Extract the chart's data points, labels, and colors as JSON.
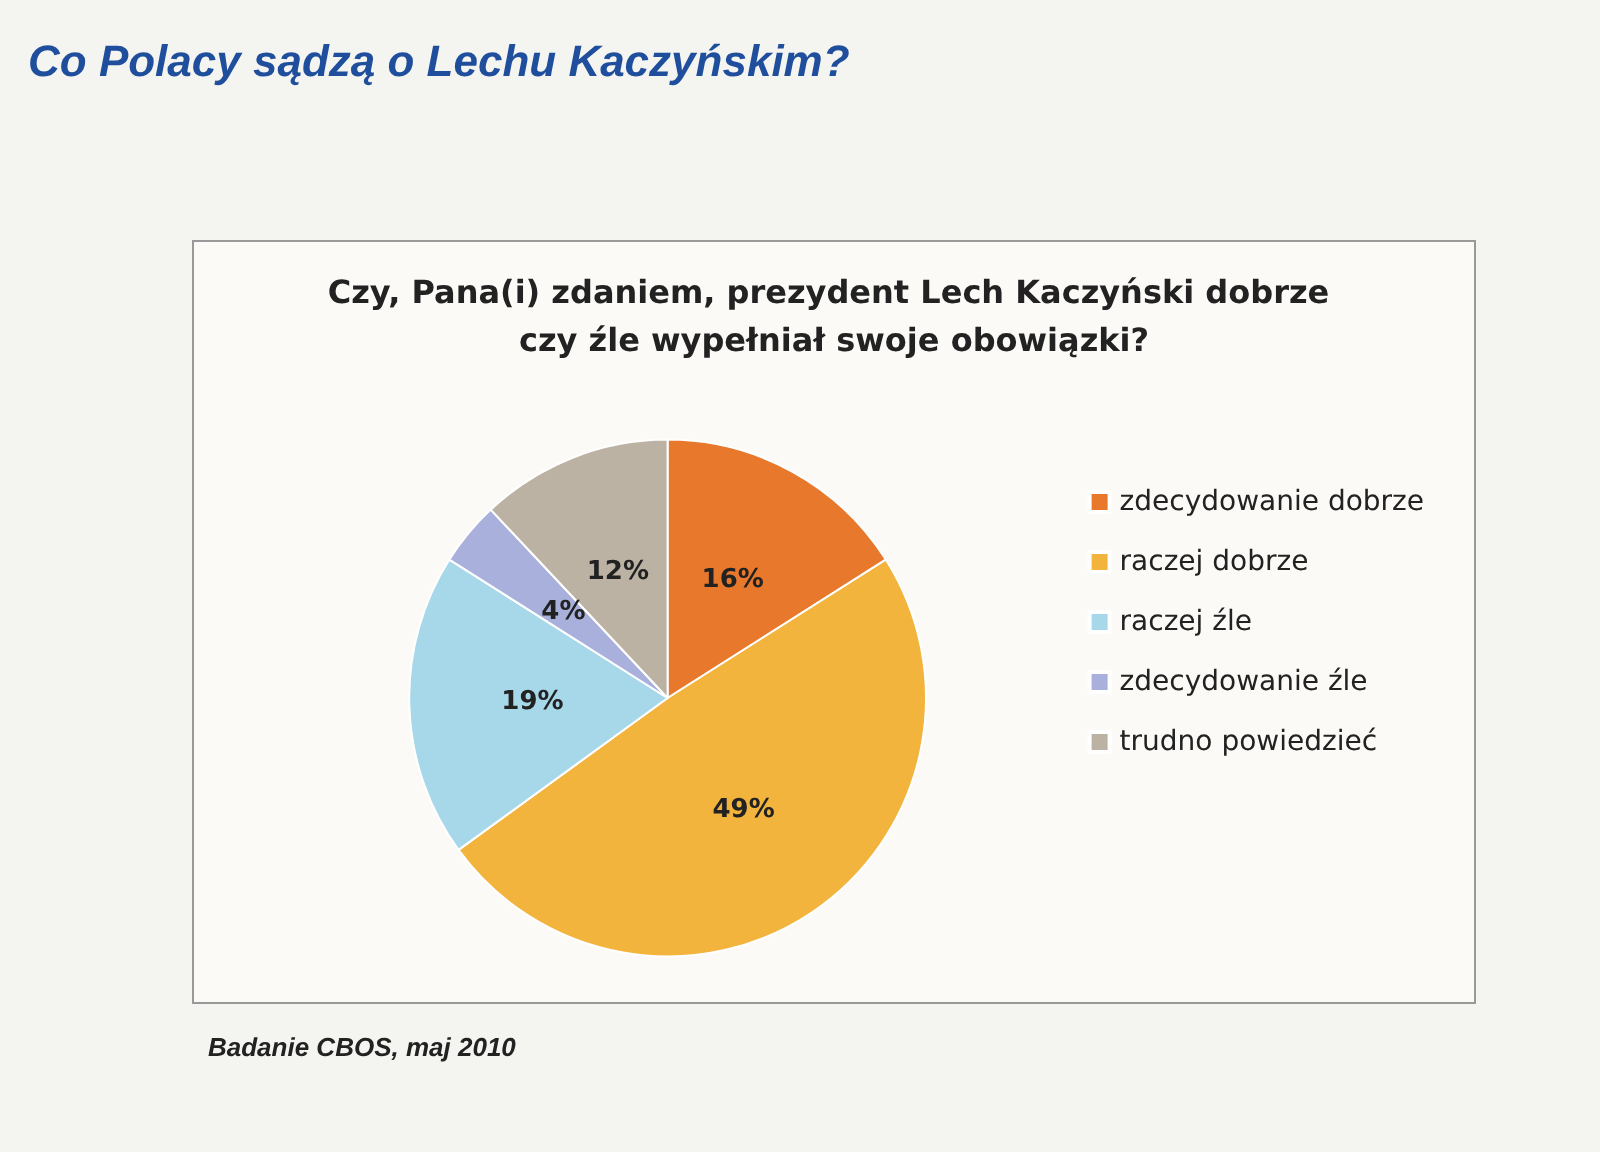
{
  "chart_data": {
    "type": "pie",
    "title": "Co Polacy sądzą o Lechu Kaczyńskim?",
    "subtitle": "Czy, Pana(i) zdaniem, prezydent Lech Kaczyński dobrze czy źle wypełniał swoje obowiązki?",
    "categories": [
      "zdecydowanie dobrze",
      "raczej dobrze",
      "raczej źle",
      "zdecydowanie źle",
      "trudno powiedzieć"
    ],
    "values": [
      16,
      49,
      19,
      4,
      12
    ],
    "value_labels": [
      "16%",
      "49%",
      "19%",
      "4%",
      "12%"
    ],
    "colors": [
      "#e8782c",
      "#f2b43c",
      "#a6d8ea",
      "#a9b0dc",
      "#bcb2a4"
    ],
    "legend": "right",
    "annotations": [
      "Badanie CBOS, maj 2010"
    ]
  }
}
